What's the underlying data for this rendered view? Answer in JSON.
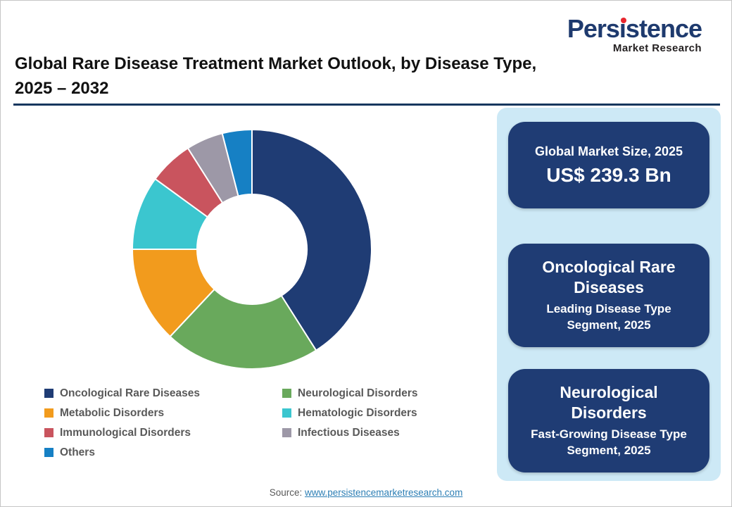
{
  "logo": {
    "name": "Persistence",
    "tagline": "Market Research",
    "brand_color": "#1E3A6E",
    "accent_color": "#E8262D"
  },
  "header": {
    "title_line1": "Global Rare Disease Treatment Market Outlook, by Disease Type,",
    "title_line2": "2025 – 2032"
  },
  "chart_data": {
    "type": "pie",
    "subtype": "donut",
    "title": "Global Rare Disease Treatment Market Outlook, by Disease Type, 2025 – 2032",
    "categories": [
      "Oncological Rare Diseases",
      "Neurological Disorders",
      "Metabolic Disorders",
      "Hematologic Disorders",
      "Immunological Disorders",
      "Infectious Diseases",
      "Others"
    ],
    "values": [
      41,
      21,
      13,
      10,
      6,
      5,
      4
    ],
    "values_note": "percent share estimated from arc angles; no numeric data labels shown in chart",
    "colors": [
      "#1F3C74",
      "#69A95C",
      "#F29B1D",
      "#3BC6CF",
      "#C9545E",
      "#9D98A7",
      "#1680C4"
    ],
    "start_angle_deg": -90,
    "direction": "clockwise",
    "legend_position": "bottom-left, two columns"
  },
  "side_panel": {
    "cards": [
      {
        "title": "Global Market Size, 2025",
        "value": "US$ 239.3 Bn"
      },
      {
        "title": "Oncological Rare Diseases",
        "subtitle": "Leading Disease Type Segment, 2025"
      },
      {
        "title": "Neurological Disorders",
        "subtitle": "Fast-Growing Disease Type Segment, 2025"
      }
    ]
  },
  "footer": {
    "source_label": "Source:",
    "source_link": "www.persistencemarketresearch.com"
  },
  "theme": {
    "page_bg": "#FFFFFF",
    "panel_bg": "#CDE9F6",
    "card_bg": "#1F3C74",
    "card_text": "#FFFFFF",
    "rule_color": "#17375E",
    "title_color": "#111111",
    "legend_text_color": "#595959",
    "link_color": "#2D7FB5"
  }
}
